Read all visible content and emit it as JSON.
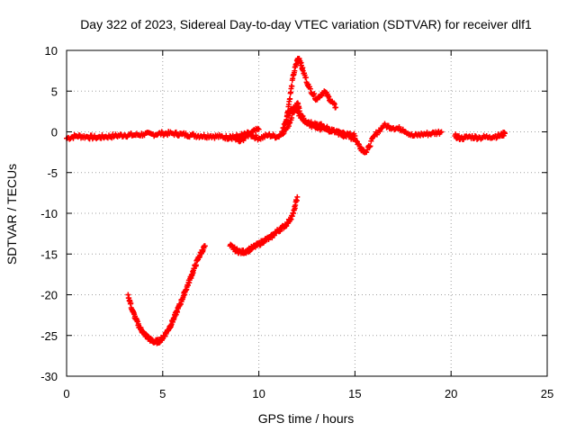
{
  "chart_data": {
    "type": "scatter",
    "title": "Day 322 of 2023, Sidereal Day-to-day VTEC variation (SDTVAR) for receiver dlf1",
    "xlabel": "GPS time / hours",
    "ylabel": "SDTVAR / TECUs",
    "xlim": [
      0,
      25
    ],
    "ylim": [
      -30,
      10
    ],
    "xticks": [
      "0",
      "5",
      "10",
      "15",
      "20",
      "25"
    ],
    "yticks": [
      "10",
      "5",
      "0",
      "-5",
      "-10",
      "-15",
      "-20",
      "-25",
      "-30"
    ],
    "grid": true,
    "marker": "plus",
    "color": "#ff0000",
    "series": [
      {
        "name": "arc-main-1",
        "x": [
          0.0,
          0.5,
          1.0,
          1.5,
          2.0,
          2.5,
          3.0,
          3.5,
          4.0,
          4.5,
          5.0,
          5.5,
          6.0,
          6.5,
          7.0,
          7.5,
          8.0,
          8.5,
          9.0,
          9.5,
          10.0
        ],
        "y": [
          -0.8,
          -0.5,
          -0.6,
          -0.7,
          -0.6,
          -0.5,
          -0.4,
          -0.4,
          -0.3,
          -0.3,
          -0.2,
          -0.2,
          -0.3,
          -0.4,
          -0.5,
          -0.5,
          -0.6,
          -0.7,
          -0.5,
          -0.2,
          0.3
        ]
      },
      {
        "name": "arc-main-2",
        "x": [
          8.5,
          9.0,
          9.5,
          10.0,
          10.5,
          11.0,
          11.5,
          11.8,
          12.0,
          12.2,
          12.5,
          13.0,
          13.5,
          14.0,
          14.5,
          15.0,
          15.3,
          15.6,
          16.0,
          16.5,
          17.0,
          17.5,
          18.0,
          18.5,
          19.0,
          19.5
        ],
        "y": [
          -0.5,
          -1.2,
          -0.3,
          -0.8,
          -0.4,
          -0.6,
          0.5,
          2.5,
          3.5,
          2.0,
          1.0,
          0.5,
          0.3,
          0.0,
          -0.5,
          -0.8,
          -2.0,
          -2.5,
          -0.5,
          0.8,
          0.5,
          0.3,
          -0.5,
          -0.3,
          -0.2,
          0.0
        ]
      },
      {
        "name": "arc-spike",
        "x": [
          11.4,
          11.6,
          11.8,
          12.0,
          12.1,
          12.3,
          12.6,
          13.0,
          13.4,
          13.7,
          14.0
        ],
        "y": [
          1.0,
          4.0,
          7.0,
          8.8,
          9.0,
          7.5,
          5.5,
          4.0,
          5.0,
          4.0,
          3.0
        ]
      },
      {
        "name": "arc-spike-lower",
        "x": [
          11.2,
          11.5,
          11.8,
          12.0,
          12.3,
          12.6,
          13.0,
          13.5,
          14.0,
          14.5,
          15.0
        ],
        "y": [
          0.0,
          2.0,
          3.0,
          2.5,
          1.5,
          1.2,
          1.0,
          0.5,
          0.0,
          -0.3,
          -0.5
        ]
      },
      {
        "name": "arc-late",
        "x": [
          20.2,
          20.5,
          21.0,
          21.5,
          22.0,
          22.5,
          22.8
        ],
        "y": [
          -0.5,
          -0.8,
          -0.6,
          -0.7,
          -0.6,
          -0.5,
          -0.2
        ]
      },
      {
        "name": "arc-deep",
        "x": [
          3.2,
          3.4,
          3.6,
          3.8,
          4.0,
          4.2,
          4.4,
          4.6,
          4.8,
          5.0,
          5.2,
          5.4,
          5.6,
          5.8,
          6.0,
          6.2,
          6.4,
          6.6,
          6.8,
          7.0,
          7.2
        ],
        "y": [
          -20.0,
          -21.8,
          -23.0,
          -24.0,
          -24.7,
          -25.2,
          -25.6,
          -25.8,
          -25.7,
          -25.3,
          -24.6,
          -23.8,
          -22.8,
          -21.7,
          -20.6,
          -19.4,
          -18.2,
          -17.0,
          -15.8,
          -14.8,
          -14.0
        ]
      },
      {
        "name": "arc-rise",
        "x": [
          8.5,
          8.8,
          9.1,
          9.4,
          9.7,
          10.0,
          10.3,
          10.6,
          10.9,
          11.2,
          11.5,
          11.8,
          12.0
        ],
        "y": [
          -14.0,
          -14.5,
          -14.8,
          -14.6,
          -14.2,
          -13.8,
          -13.3,
          -13.0,
          -12.3,
          -11.8,
          -11.2,
          -10.0,
          -8.0
        ]
      }
    ]
  }
}
